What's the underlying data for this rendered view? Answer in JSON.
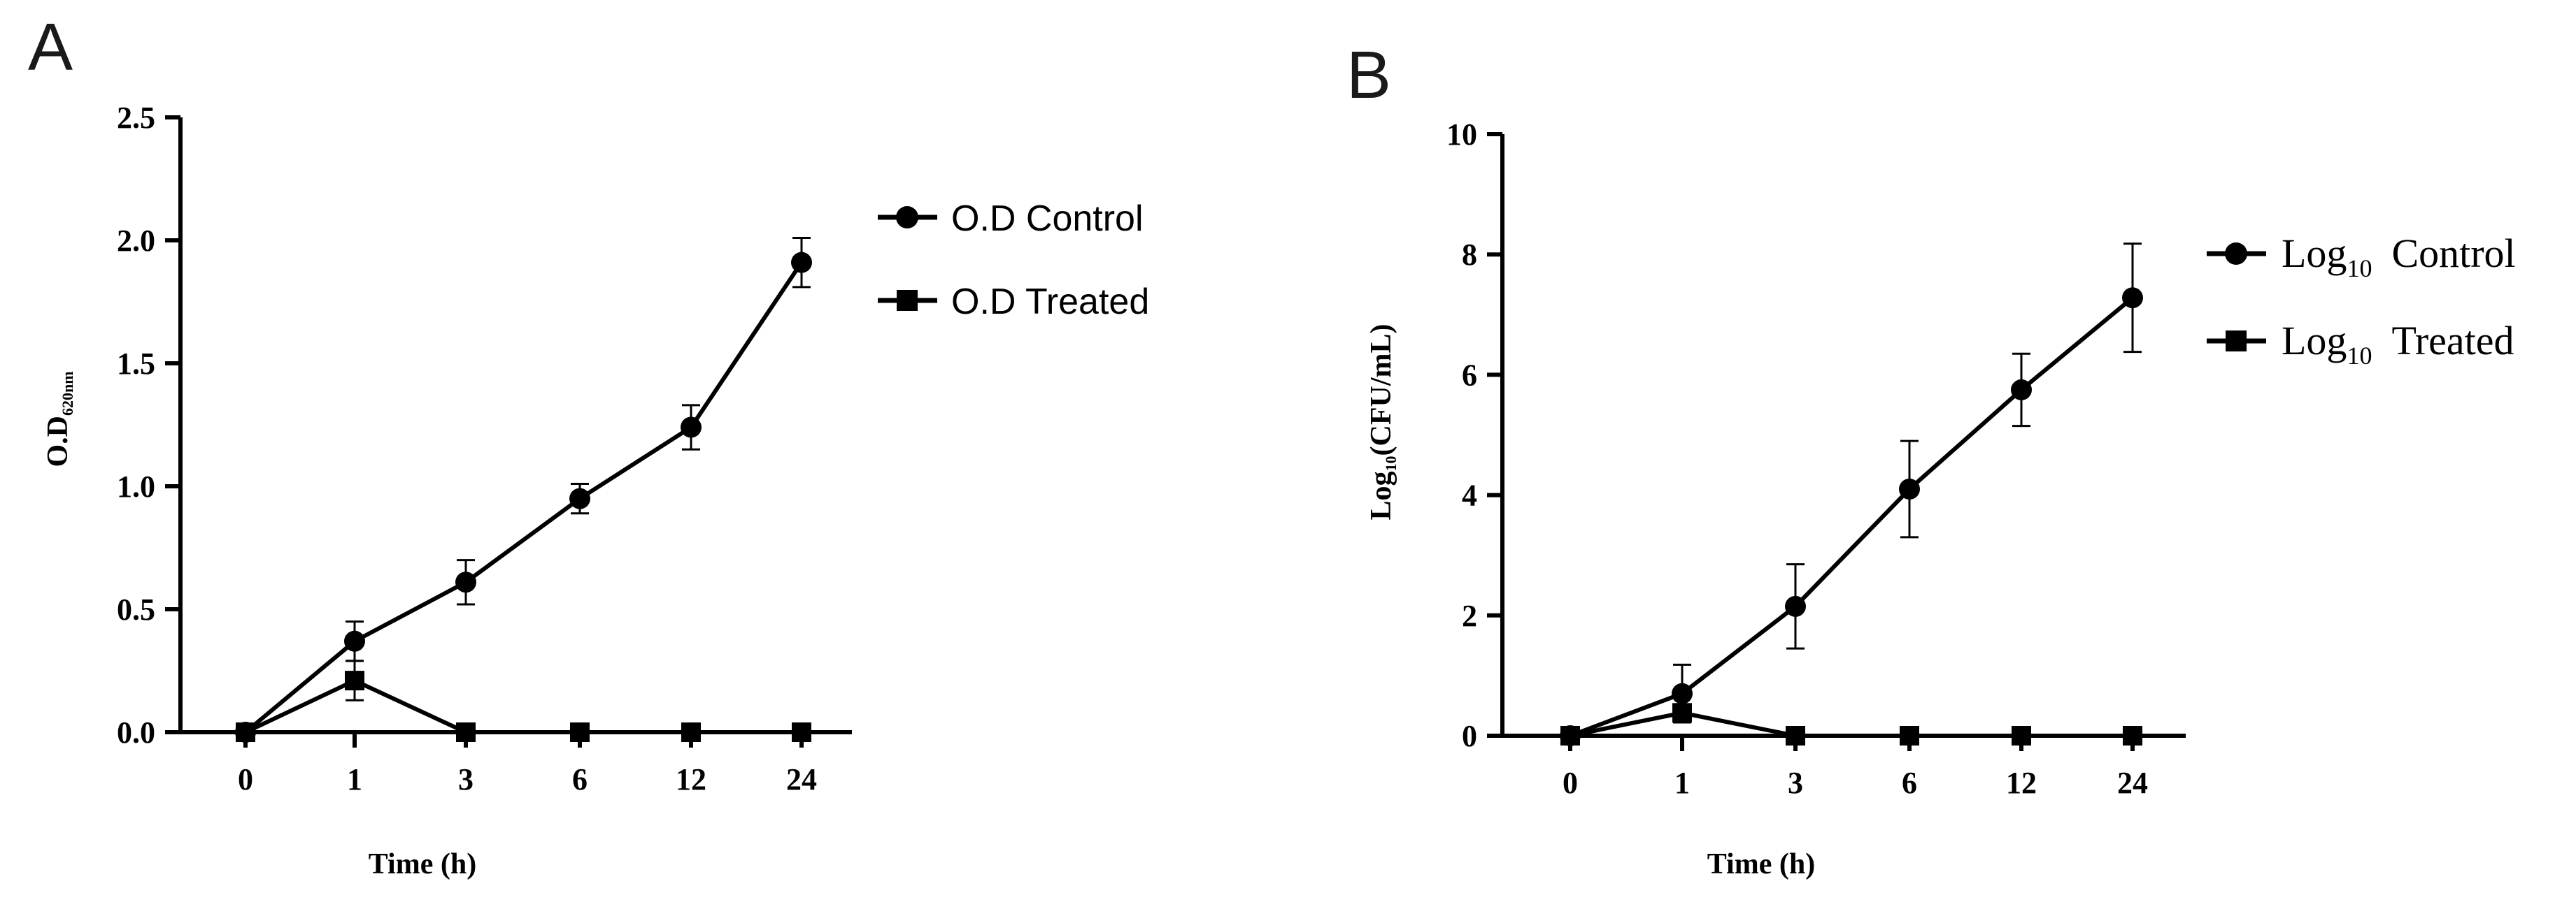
{
  "chart_data": [
    {
      "type": "line",
      "panel": "A",
      "categories": [
        "0",
        "1",
        "3",
        "6",
        "12",
        "24"
      ],
      "ylabel": {
        "main": "O.D",
        "sub": "620nm"
      },
      "xlabel": "Time (h)",
      "ylim": [
        0,
        2.5
      ],
      "yticks": [
        "0.0",
        "0.5",
        "1.0",
        "1.5",
        "2.0",
        "2.5"
      ],
      "yticks_values": [
        0,
        0.5,
        1.0,
        1.5,
        2.0,
        2.5
      ],
      "series": [
        {
          "name": "O.D Control",
          "marker": "circle",
          "values": [
            0.0,
            0.37,
            0.61,
            0.95,
            1.24,
            1.91
          ],
          "errors": [
            0.0,
            0.08,
            0.09,
            0.06,
            0.09,
            0.1
          ]
        },
        {
          "name": "O.D Treated",
          "marker": "square",
          "values": [
            0.0,
            0.21,
            0.0,
            0.0,
            0.0,
            0.0
          ],
          "errors": [
            0.0,
            0.08,
            0.0,
            0.0,
            0.0,
            0.0
          ]
        }
      ],
      "legend": {
        "position": "right",
        "items": [
          "O.D Control",
          "O.D Treated"
        ]
      }
    },
    {
      "type": "line",
      "panel": "B",
      "categories": [
        "0",
        "1",
        "3",
        "6",
        "12",
        "24"
      ],
      "ylabel": {
        "pre": "Log",
        "sub": "10",
        "post": "(CFU/mL)"
      },
      "xlabel": "Time (h)",
      "ylim": [
        0,
        10
      ],
      "yticks": [
        "0",
        "2",
        "4",
        "6",
        "8",
        "10"
      ],
      "yticks_values": [
        0,
        2,
        4,
        6,
        8,
        10
      ],
      "series": [
        {
          "name": "Log10 Control",
          "marker": "circle",
          "values": [
            0.0,
            0.7,
            2.15,
            4.1,
            5.75,
            7.28
          ],
          "errors": [
            0.0,
            0.48,
            0.7,
            0.8,
            0.6,
            0.9
          ]
        },
        {
          "name": "Log10 Treated",
          "marker": "square",
          "values": [
            0.0,
            0.38,
            0.0,
            0.0,
            0.0,
            0.0
          ],
          "errors": [
            0.0,
            0.0,
            0.0,
            0.0,
            0.0,
            0.0
          ]
        }
      ],
      "legend": {
        "position": "right",
        "items": [
          {
            "pre": "Log",
            "sub": "10",
            "post": "Control"
          },
          {
            "pre": "Log",
            "sub": "10",
            "post": "Treated"
          }
        ]
      }
    }
  ]
}
